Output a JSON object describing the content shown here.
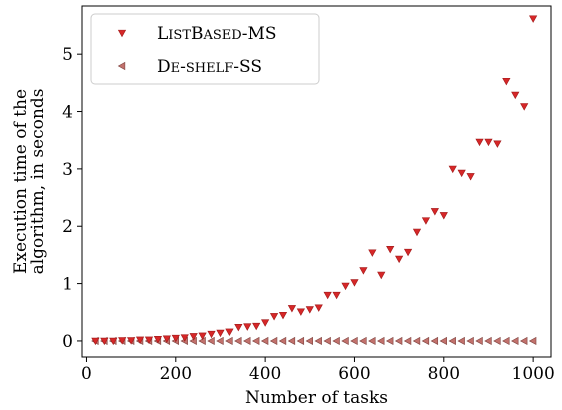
{
  "chart_data": {
    "type": "scatter",
    "title": "",
    "xlabel": "Number of tasks",
    "ylabel_lines": [
      "Execution time of the",
      "algorithm, in seconds"
    ],
    "xlim": [
      -10,
      1040
    ],
    "ylim": [
      -0.28,
      5.84
    ],
    "xticks": [
      0,
      200,
      400,
      600,
      800,
      1000
    ],
    "yticks": [
      0,
      1,
      2,
      3,
      4,
      5
    ],
    "grid": false,
    "legend_position": "top-left",
    "series": [
      {
        "name_main": "ListBased-MS",
        "name_parts": [
          {
            "text": "L",
            "small": false
          },
          {
            "text": "ist",
            "small": true
          },
          {
            "text": "B",
            "small": false
          },
          {
            "text": "ased",
            "small": true
          },
          {
            "text": "-MS",
            "small": false
          }
        ],
        "marker": "triangle-down",
        "color": "#d62728",
        "edge": "#a01a1a",
        "x": [
          20,
          40,
          60,
          80,
          100,
          120,
          140,
          160,
          180,
          200,
          220,
          240,
          260,
          280,
          300,
          320,
          340,
          360,
          380,
          400,
          420,
          440,
          460,
          480,
          500,
          520,
          540,
          560,
          580,
          600,
          620,
          640,
          660,
          680,
          700,
          720,
          740,
          760,
          780,
          800,
          820,
          840,
          860,
          880,
          900,
          920,
          940,
          960,
          980,
          1000
        ],
        "y": [
          0.0,
          0.0,
          0.0,
          0.01,
          0.01,
          0.02,
          0.02,
          0.03,
          0.04,
          0.05,
          0.06,
          0.08,
          0.09,
          0.12,
          0.14,
          0.16,
          0.24,
          0.25,
          0.26,
          0.32,
          0.43,
          0.45,
          0.57,
          0.51,
          0.55,
          0.58,
          0.8,
          0.8,
          0.96,
          1.02,
          1.23,
          1.54,
          1.15,
          1.6,
          1.43,
          1.55,
          1.9,
          2.1,
          2.26,
          2.19,
          3.0,
          2.93,
          2.87,
          3.47,
          3.47,
          3.44,
          4.53,
          4.29,
          4.09,
          5.62
        ]
      },
      {
        "name_main": "De-shelf-SS",
        "name_parts": [
          {
            "text": "D",
            "small": false
          },
          {
            "text": "e",
            "small": true
          },
          {
            "text": "-",
            "small": false
          },
          {
            "text": "shelf",
            "small": true
          },
          {
            "text": "-SS",
            "small": false
          }
        ],
        "marker": "triangle-left",
        "color": "#c2716c",
        "edge": "#7d4440",
        "x": [
          20,
          40,
          60,
          80,
          100,
          120,
          140,
          160,
          180,
          200,
          220,
          240,
          260,
          280,
          300,
          320,
          340,
          360,
          380,
          400,
          420,
          440,
          460,
          480,
          500,
          520,
          540,
          560,
          580,
          600,
          620,
          640,
          660,
          680,
          700,
          720,
          740,
          760,
          780,
          800,
          820,
          840,
          860,
          880,
          900,
          920,
          940,
          960,
          980,
          1000
        ],
        "y": [
          0,
          0,
          0,
          0,
          0,
          0,
          0,
          0,
          0,
          0,
          0,
          0,
          0,
          0,
          0,
          0,
          0,
          0,
          0,
          0,
          0,
          0,
          0,
          0,
          0,
          0,
          0,
          0,
          0,
          0,
          0,
          0,
          0,
          0,
          0,
          0,
          0,
          0,
          0,
          0,
          0,
          0,
          0,
          0,
          0,
          0,
          0,
          0,
          0,
          0
        ]
      }
    ]
  }
}
